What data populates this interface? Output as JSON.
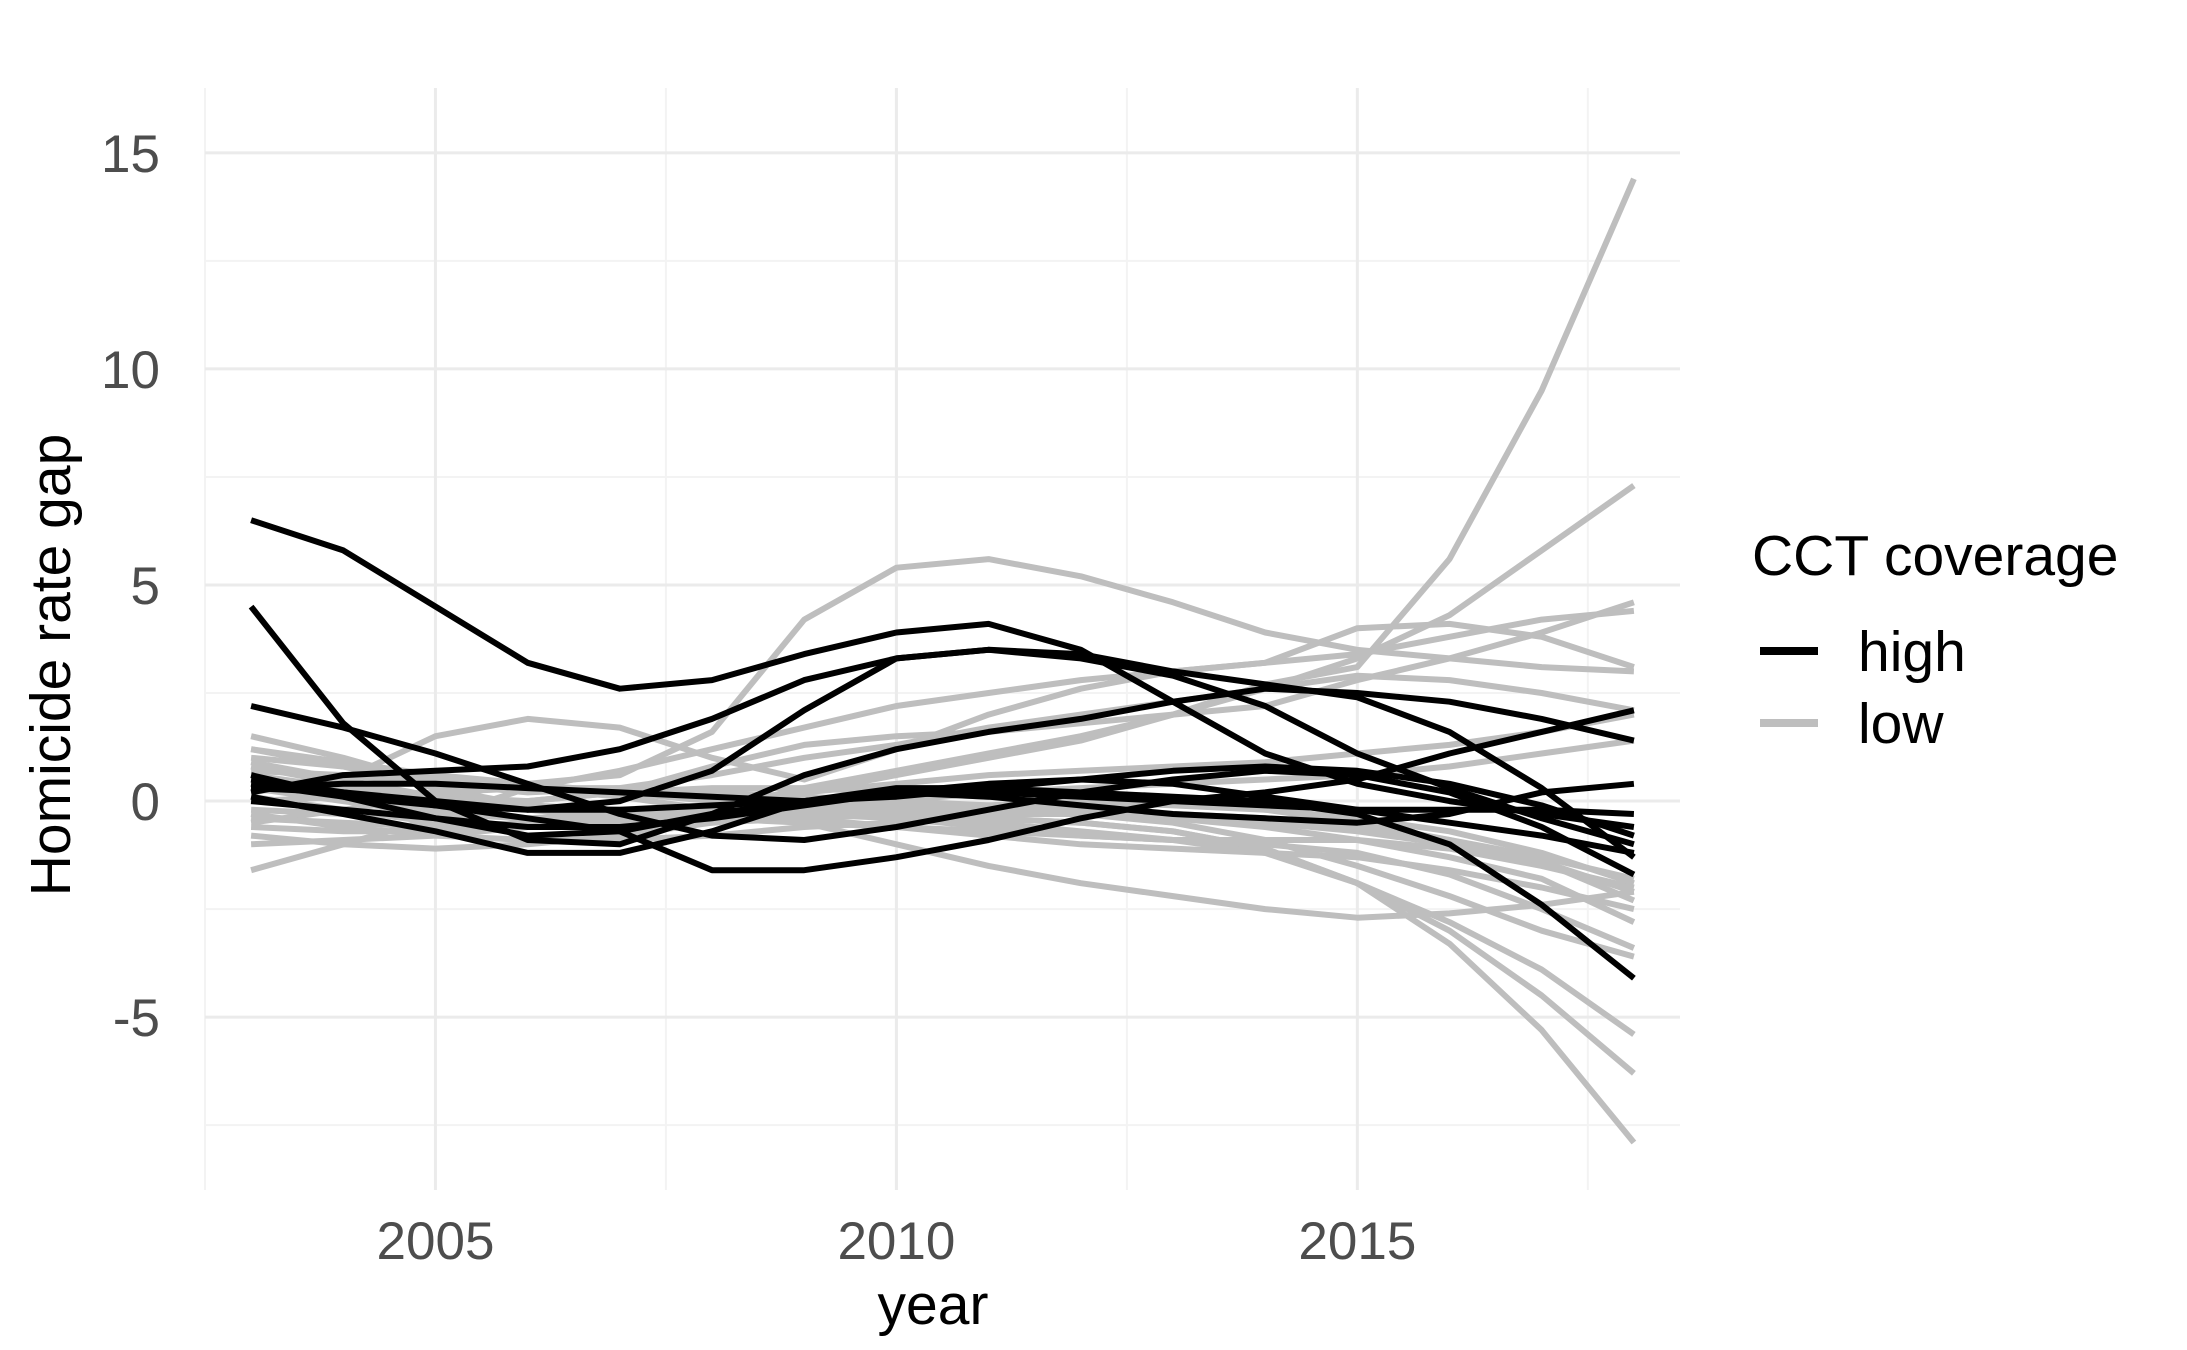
{
  "chart_data": {
    "type": "line",
    "title": "",
    "xlabel": "year",
    "ylabel": "Homicide rate gap",
    "xlim": [
      2002.5,
      2018.5
    ],
    "ylim": [
      -9,
      16.5
    ],
    "x_ticks": [
      2005,
      2010,
      2015
    ],
    "y_ticks": [
      -5,
      0,
      5,
      10,
      15
    ],
    "y_tick_labels": [
      "-5",
      "0",
      "5",
      "10",
      "15"
    ],
    "x_minor_ticks": [
      2002.5,
      2007.5,
      2012.5,
      2017.5
    ],
    "y_minor_ticks": [
      -7.5,
      -2.5,
      2.5,
      7.5,
      12.5
    ],
    "grid": true,
    "legend": {
      "title": "CCT coverage",
      "position": "right",
      "entries": [
        {
          "label": "high",
          "color": "#000000"
        },
        {
          "label": "low",
          "color": "#bebebe"
        }
      ]
    },
    "groups": {
      "high": "#000000",
      "low": "#bebebe"
    },
    "x": [
      2003,
      2004,
      2005,
      2006,
      2007,
      2008,
      2009,
      2010,
      2011,
      2012,
      2013,
      2014,
      2015,
      2016,
      2017,
      2018
    ],
    "series": [
      {
        "group": "low",
        "values": [
          -1.6,
          -1.0,
          -0.4,
          0.3,
          0.7,
          1.2,
          1.7,
          2.2,
          2.5,
          2.8,
          3.0,
          3.2,
          3.4,
          3.8,
          4.2,
          4.4
        ]
      },
      {
        "group": "low",
        "values": [
          1.2,
          0.8,
          0.3,
          -0.1,
          -0.3,
          -0.2,
          0.2,
          0.6,
          1.0,
          1.4,
          2.0,
          2.7,
          3.1,
          5.6,
          9.5,
          14.4
        ]
      },
      {
        "group": "low",
        "values": [
          0.5,
          0.2,
          -0.2,
          -0.4,
          -0.4,
          -0.2,
          0.3,
          0.7,
          1.1,
          1.5,
          2.0,
          2.6,
          3.3,
          4.3,
          5.8,
          7.3
        ]
      },
      {
        "group": "low",
        "values": [
          -0.5,
          -0.2,
          0.1,
          0.4,
          0.6,
          1.6,
          4.2,
          5.4,
          5.6,
          5.2,
          4.6,
          3.9,
          3.5,
          3.3,
          3.1,
          3.0
        ]
      },
      {
        "group": "low",
        "values": [
          0.2,
          0.5,
          1.5,
          1.9,
          1.7,
          1.0,
          0.5,
          1.2,
          2.0,
          2.6,
          3.0,
          3.2,
          4.0,
          4.1,
          3.8,
          3.1
        ]
      },
      {
        "group": "low",
        "values": [
          0.8,
          0.4,
          0.1,
          0.0,
          0.2,
          0.8,
          1.3,
          1.5,
          1.6,
          1.8,
          2.0,
          2.2,
          2.8,
          3.3,
          3.9,
          4.6
        ]
      },
      {
        "group": "low",
        "values": [
          1.5,
          1.0,
          0.4,
          0.2,
          0.3,
          0.6,
          1.0,
          1.3,
          1.7,
          2.0,
          2.3,
          2.6,
          2.9,
          2.8,
          2.5,
          2.1
        ]
      },
      {
        "group": "low",
        "values": [
          0.3,
          0.0,
          -0.3,
          -0.4,
          -0.3,
          -0.1,
          0.2,
          0.4,
          0.6,
          0.7,
          0.8,
          0.9,
          1.1,
          1.3,
          1.6,
          2.0
        ]
      },
      {
        "group": "low",
        "values": [
          -0.8,
          -1.0,
          -1.1,
          -1.0,
          -0.8,
          -0.5,
          -0.2,
          0.0,
          0.2,
          0.3,
          0.4,
          0.5,
          0.6,
          0.8,
          1.1,
          1.4
        ]
      },
      {
        "group": "low",
        "values": [
          1.0,
          0.8,
          0.5,
          0.3,
          0.1,
          -0.2,
          -0.5,
          -1.0,
          -1.5,
          -1.9,
          -2.2,
          -2.5,
          -2.7,
          -2.6,
          -2.4,
          -2.1
        ]
      },
      {
        "group": "low",
        "values": [
          0.6,
          0.3,
          0.0,
          -0.2,
          -0.3,
          -0.4,
          -0.5,
          -0.6,
          -0.7,
          -0.8,
          -0.9,
          -1.2,
          -1.9,
          -2.8,
          -3.9,
          -5.4
        ]
      },
      {
        "group": "low",
        "values": [
          0.1,
          -0.2,
          -0.5,
          -0.6,
          -0.6,
          -0.5,
          -0.4,
          -0.3,
          -0.4,
          -0.5,
          -0.7,
          -1.1,
          -1.9,
          -3.3,
          -5.3,
          -7.9
        ]
      },
      {
        "group": "low",
        "values": [
          -0.3,
          -0.6,
          -0.8,
          -0.9,
          -0.9,
          -0.8,
          -0.6,
          -0.5,
          -0.4,
          -0.5,
          -0.7,
          -1.1,
          -1.9,
          -3.0,
          -4.5,
          -6.3
        ]
      },
      {
        "group": "low",
        "values": [
          0.9,
          0.5,
          0.1,
          -0.2,
          -0.4,
          -0.4,
          -0.3,
          -0.2,
          -0.2,
          -0.3,
          -0.5,
          -0.9,
          -1.5,
          -2.2,
          -3.0,
          -3.6
        ]
      },
      {
        "group": "low",
        "values": [
          -0.4,
          -0.5,
          -0.6,
          -0.5,
          -0.4,
          -0.3,
          -0.2,
          -0.3,
          -0.5,
          -0.7,
          -0.9,
          -1.0,
          -1.2,
          -1.7,
          -2.5,
          -3.4
        ]
      },
      {
        "group": "low",
        "values": [
          0.4,
          0.2,
          0.0,
          -0.1,
          -0.2,
          -0.3,
          -0.4,
          -0.6,
          -0.8,
          -1.0,
          -1.1,
          -1.2,
          -1.3,
          -1.6,
          -2.0,
          -2.5
        ]
      },
      {
        "group": "low",
        "values": [
          -1.0,
          -0.9,
          -0.8,
          -0.6,
          -0.4,
          -0.3,
          -0.3,
          -0.4,
          -0.6,
          -0.8,
          -0.9,
          -0.9,
          -0.9,
          -1.1,
          -1.5,
          -2.0
        ]
      },
      {
        "group": "low",
        "values": [
          0.0,
          0.1,
          0.2,
          0.3,
          0.3,
          0.2,
          0.1,
          0.0,
          -0.1,
          -0.2,
          -0.3,
          -0.4,
          -0.6,
          -0.9,
          -1.3,
          -1.8
        ]
      },
      {
        "group": "low",
        "values": [
          1.2,
          0.9,
          0.6,
          0.4,
          0.2,
          0.0,
          -0.1,
          -0.2,
          -0.3,
          -0.3,
          -0.4,
          -0.5,
          -0.7,
          -1.0,
          -1.4,
          -2.3
        ]
      },
      {
        "group": "low",
        "values": [
          -0.6,
          -0.7,
          -0.7,
          -0.6,
          -0.5,
          -0.4,
          -0.3,
          -0.2,
          -0.2,
          -0.3,
          -0.4,
          -0.6,
          -0.9,
          -1.3,
          -1.8,
          -2.8
        ]
      },
      {
        "group": "low",
        "values": [
          0.7,
          0.6,
          0.4,
          0.3,
          0.2,
          0.1,
          0.0,
          -0.1,
          -0.1,
          0.0,
          0.0,
          -0.2,
          -0.5,
          -0.9,
          -1.4,
          -2.1
        ]
      },
      {
        "group": "low",
        "values": [
          -0.2,
          -0.3,
          -0.2,
          0.0,
          0.2,
          0.3,
          0.3,
          0.2,
          0.1,
          0.0,
          -0.1,
          -0.2,
          -0.4,
          -0.7,
          -1.2,
          -1.9
        ]
      },
      {
        "group": "high",
        "values": [
          6.5,
          5.8,
          4.5,
          3.2,
          2.6,
          2.8,
          3.4,
          3.9,
          4.1,
          3.5,
          2.3,
          1.1,
          0.4,
          0.0,
          -0.3,
          -0.6
        ]
      },
      {
        "group": "high",
        "values": [
          4.5,
          1.8,
          0.0,
          -0.9,
          -1.0,
          -0.3,
          0.6,
          1.2,
          1.6,
          1.9,
          2.3,
          2.6,
          2.5,
          2.3,
          1.9,
          1.4
        ]
      },
      {
        "group": "high",
        "values": [
          2.2,
          1.7,
          1.1,
          0.4,
          -0.3,
          -0.8,
          -0.9,
          -0.6,
          -0.2,
          0.2,
          0.5,
          0.7,
          0.6,
          0.2,
          -0.6,
          -1.7
        ]
      },
      {
        "group": "high",
        "values": [
          0.3,
          0.2,
          0.0,
          -0.2,
          0.0,
          0.7,
          2.1,
          3.3,
          3.5,
          3.4,
          3.0,
          2.7,
          2.4,
          1.6,
          0.3,
          -1.3
        ]
      },
      {
        "group": "high",
        "values": [
          0.6,
          0.1,
          -0.4,
          -0.8,
          -0.7,
          -0.3,
          0.0,
          0.2,
          0.1,
          -0.1,
          -0.3,
          -0.4,
          -0.5,
          -0.3,
          0.2,
          0.4
        ]
      },
      {
        "group": "high",
        "values": [
          0.2,
          0.6,
          0.7,
          0.8,
          1.2,
          1.9,
          2.8,
          3.3,
          3.5,
          3.3,
          2.9,
          2.2,
          1.1,
          0.3,
          -0.4,
          -1.0
        ]
      },
      {
        "group": "high",
        "values": [
          0.4,
          0.1,
          -0.1,
          -0.2,
          -0.2,
          -0.1,
          0.0,
          0.2,
          0.2,
          0.1,
          0.0,
          -0.1,
          -0.2,
          -0.2,
          -0.2,
          -0.3
        ]
      },
      {
        "group": "high",
        "values": [
          0.1,
          -0.3,
          -0.7,
          -1.2,
          -1.2,
          -0.7,
          0.0,
          0.3,
          0.3,
          0.2,
          0.1,
          0.0,
          -0.3,
          -1.0,
          -2.4,
          -4.1
        ]
      },
      {
        "group": "high",
        "values": [
          0.5,
          0.2,
          -0.1,
          -0.4,
          -0.7,
          -1.6,
          -1.6,
          -1.3,
          -0.9,
          -0.4,
          0.0,
          0.2,
          0.5,
          1.1,
          1.6,
          2.1
        ]
      },
      {
        "group": "high",
        "values": [
          0.0,
          -0.2,
          -0.4,
          -0.6,
          -0.6,
          -0.4,
          -0.1,
          0.2,
          0.4,
          0.5,
          0.4,
          0.1,
          -0.2,
          -0.5,
          -0.8,
          -1.2
        ]
      },
      {
        "group": "high",
        "values": [
          0.3,
          0.4,
          0.4,
          0.3,
          0.2,
          0.1,
          0.0,
          0.1,
          0.3,
          0.5,
          0.7,
          0.8,
          0.7,
          0.4,
          -0.1,
          -0.8
        ]
      }
    ]
  }
}
